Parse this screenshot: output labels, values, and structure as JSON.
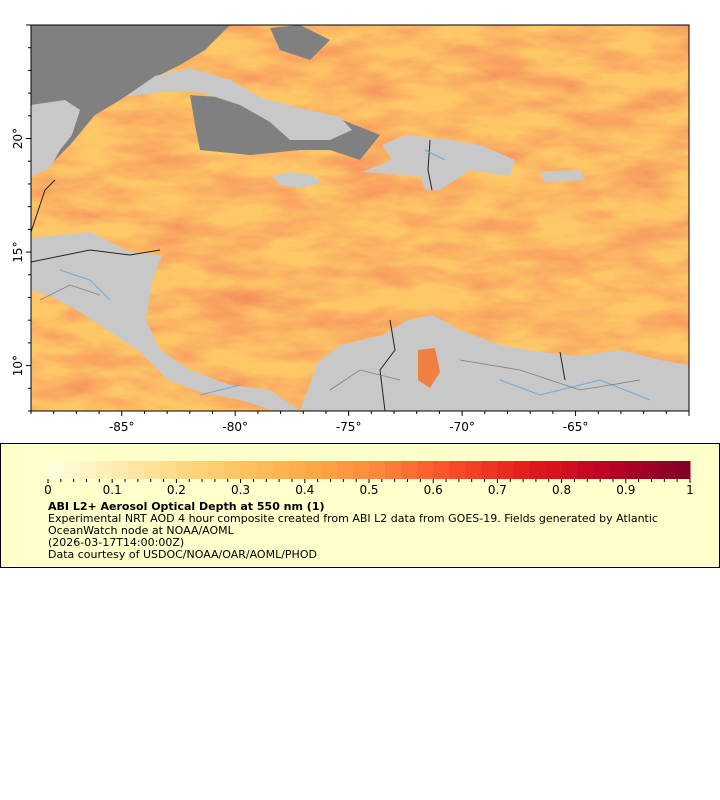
{
  "map": {
    "x_ticks": [
      "-85°",
      "-80°",
      "-75°",
      "-70°",
      "-65°"
    ],
    "x_tick_values": [
      -85,
      -80,
      -75,
      -70,
      -65
    ],
    "y_ticks": [
      "20°",
      "15°",
      "10°"
    ],
    "y_tick_values": [
      20,
      15,
      10
    ],
    "lon_range": [
      -89,
      -60
    ],
    "lat_range": [
      8,
      25
    ],
    "colors": {
      "land": "#c8c8c8",
      "no_data": "#808080",
      "border": "#222222",
      "river": "#6fa8dc",
      "state_line": "#808080"
    }
  },
  "legend": {
    "colorbar": {
      "ticks": [
        "0",
        "0.1",
        "0.2",
        "0.3",
        "0.4",
        "0.5",
        "0.6",
        "0.7",
        "0.8",
        "0.9",
        "1"
      ],
      "range": [
        0,
        1
      ],
      "palette": [
        "#ffffe0",
        "#fee8a8",
        "#fed070",
        "#feb24c",
        "#fd8d3c",
        "#fc4e2a",
        "#e31a1c",
        "#bd0026",
        "#800026"
      ]
    },
    "title": "ABI L2+ Aerosol Optical Depth at 550 nm (1)",
    "line1": "Experimental NRT AOD 4 hour composite created from ABI L2 data from GOES-19. Fields generated by Atlantic",
    "line2": "OceanWatch node at NOAA/AOML",
    "line3": "(2026-03-17T14:00:00Z)",
    "line4": "Data courtesy of USDOC/NOAA/OAR/AOML/PHOD"
  }
}
